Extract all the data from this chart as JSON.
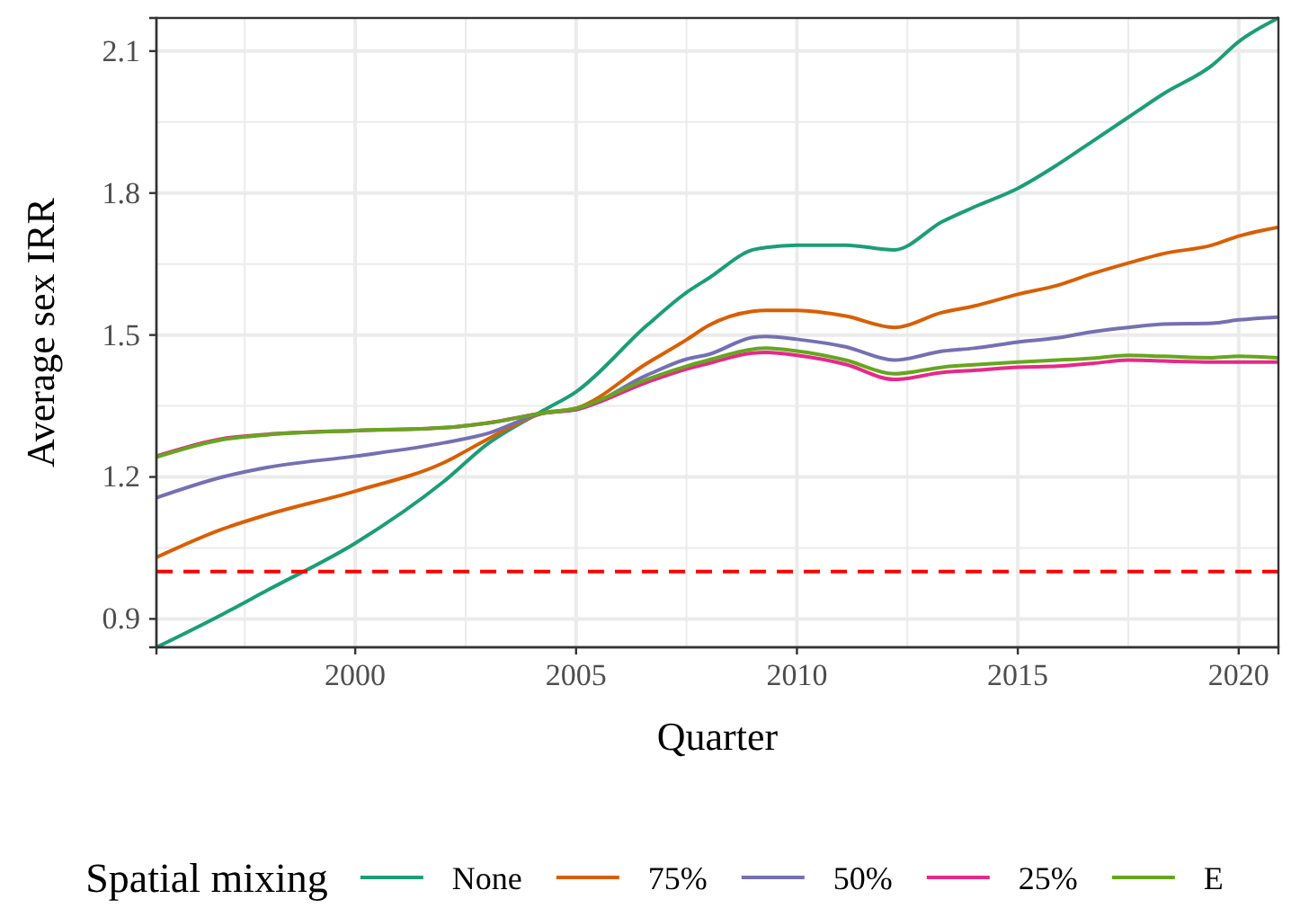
{
  "chart_data": {
    "type": "line",
    "xlabel": "Quarter",
    "ylabel": "Average sex IRR",
    "legend_title": "Spatial mixing",
    "legend": "bottom",
    "grid": true,
    "xlim": [
      1995.5,
      2020.9
    ],
    "ylim": [
      0.84,
      2.17
    ],
    "xticks": [
      2000,
      2005,
      2010,
      2015,
      2020
    ],
    "yticks": [
      0.9,
      1.2,
      1.5,
      1.8,
      2.1
    ],
    "x": [
      1995.5,
      1997,
      1998,
      2000,
      2002,
      2003,
      2004.25,
      2005,
      2006.6,
      2007.5,
      2008,
      2009,
      2009.3,
      2010,
      2011.1,
      2012.2,
      2013.3,
      2014,
      2015,
      2015.9,
      2016.7,
      2017.5,
      2018.3,
      2019.4,
      2020,
      2020.9
    ],
    "series": [
      {
        "name": "None",
        "color": "#1b9e77",
        "values": [
          0.84,
          0.91,
          0.96,
          1.06,
          1.19,
          1.27,
          1.34,
          1.38,
          1.52,
          1.59,
          1.62,
          1.68,
          1.685,
          1.69,
          1.69,
          1.68,
          1.74,
          1.77,
          1.81,
          1.86,
          1.91,
          1.96,
          2.01,
          2.07,
          2.12,
          2.17
        ]
      },
      {
        "name": "75%",
        "color": "#d95f02",
        "values": [
          1.03,
          1.09,
          1.12,
          1.17,
          1.23,
          1.28,
          1.335,
          1.345,
          1.44,
          1.49,
          1.52,
          1.55,
          1.552,
          1.552,
          1.54,
          1.516,
          1.548,
          1.561,
          1.586,
          1.605,
          1.63,
          1.652,
          1.672,
          1.69,
          1.709,
          1.728
        ]
      },
      {
        "name": "50%",
        "color": "#7570b3",
        "values": [
          1.156,
          1.2,
          1.22,
          1.244,
          1.272,
          1.292,
          1.335,
          1.342,
          1.415,
          1.449,
          1.459,
          1.495,
          1.497,
          1.491,
          1.475,
          1.447,
          1.466,
          1.472,
          1.485,
          1.494,
          1.507,
          1.516,
          1.523,
          1.525,
          1.532,
          1.538
        ]
      },
      {
        "name": "25%",
        "color": "#e7298a",
        "values": [
          1.244,
          1.281,
          1.29,
          1.298,
          1.304,
          1.314,
          1.335,
          1.343,
          1.4,
          1.428,
          1.44,
          1.462,
          1.463,
          1.457,
          1.438,
          1.406,
          1.421,
          1.425,
          1.432,
          1.434,
          1.44,
          1.447,
          1.445,
          1.443,
          1.443,
          1.443
        ]
      },
      {
        "name": "E",
        "color": "#66a61e",
        "values": [
          1.242,
          1.279,
          1.289,
          1.298,
          1.304,
          1.314,
          1.335,
          1.345,
          1.406,
          1.434,
          1.447,
          1.47,
          1.472,
          1.466,
          1.447,
          1.418,
          1.432,
          1.437,
          1.443,
          1.447,
          1.451,
          1.457,
          1.455,
          1.452,
          1.455,
          1.452
        ]
      }
    ],
    "ref_lines": [
      {
        "axis": "y",
        "value": 1,
        "color": "#ff0000",
        "line_style": "dashed"
      }
    ]
  }
}
